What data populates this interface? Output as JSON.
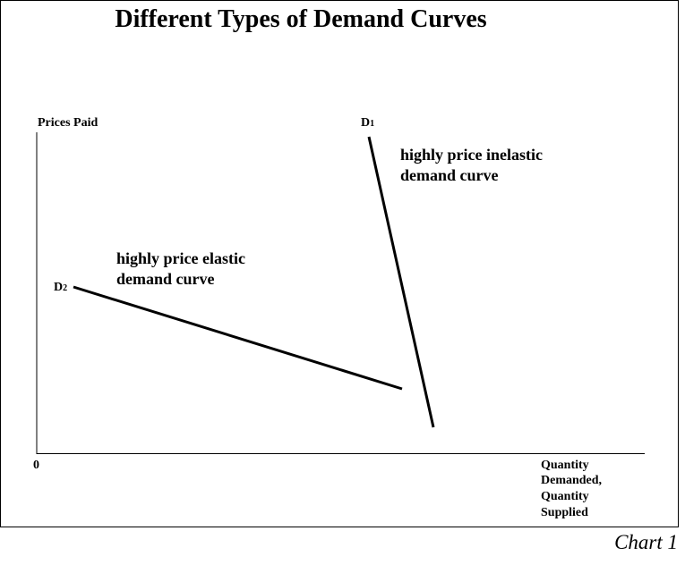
{
  "header": {
    "title": "Different Types of Demand Curves"
  },
  "axes": {
    "y_label": "Prices Paid",
    "origin": "0",
    "x_label": [
      "Quantity",
      "Demanded,",
      "Quantity",
      "Supplied"
    ]
  },
  "curves": [
    {
      "letter": "D",
      "subscript": "1",
      "annotation": [
        "highly price inelastic",
        "demand curve"
      ]
    },
    {
      "letter": "D",
      "subscript": "2",
      "annotation": [
        "highly price elastic",
        "demand curve"
      ]
    }
  ],
  "caption": "Chart 1"
}
